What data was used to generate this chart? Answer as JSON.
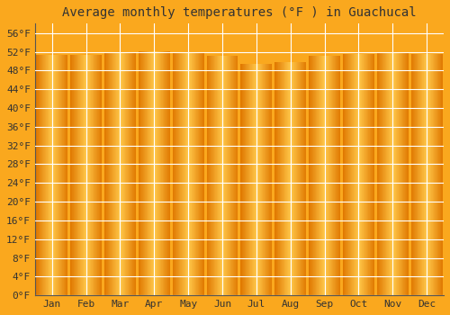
{
  "title": "Average monthly temperatures (°F ) in Guachucal",
  "months": [
    "Jan",
    "Feb",
    "Mar",
    "Apr",
    "May",
    "Jun",
    "Jul",
    "Aug",
    "Sep",
    "Oct",
    "Nov",
    "Dec"
  ],
  "values": [
    51.4,
    51.3,
    52.0,
    52.1,
    51.9,
    51.2,
    49.5,
    49.8,
    51.2,
    51.6,
    51.8,
    51.5
  ],
  "ylim": [
    0,
    58
  ],
  "yticks": [
    0,
    4,
    8,
    12,
    16,
    20,
    24,
    28,
    32,
    36,
    40,
    44,
    48,
    52,
    56
  ],
  "ytick_labels": [
    "0°F",
    "4°F",
    "8°F",
    "12°F",
    "16°F",
    "20°F",
    "24°F",
    "28°F",
    "32°F",
    "36°F",
    "40°F",
    "44°F",
    "48°F",
    "52°F",
    "56°F"
  ],
  "bg_color": "#FAA81E",
  "bar_edge_color": "#E07800",
  "bar_center_color": "#FFC84A",
  "grid_color": "#ffffff",
  "title_fontsize": 10,
  "tick_fontsize": 8,
  "bar_width": 0.92
}
